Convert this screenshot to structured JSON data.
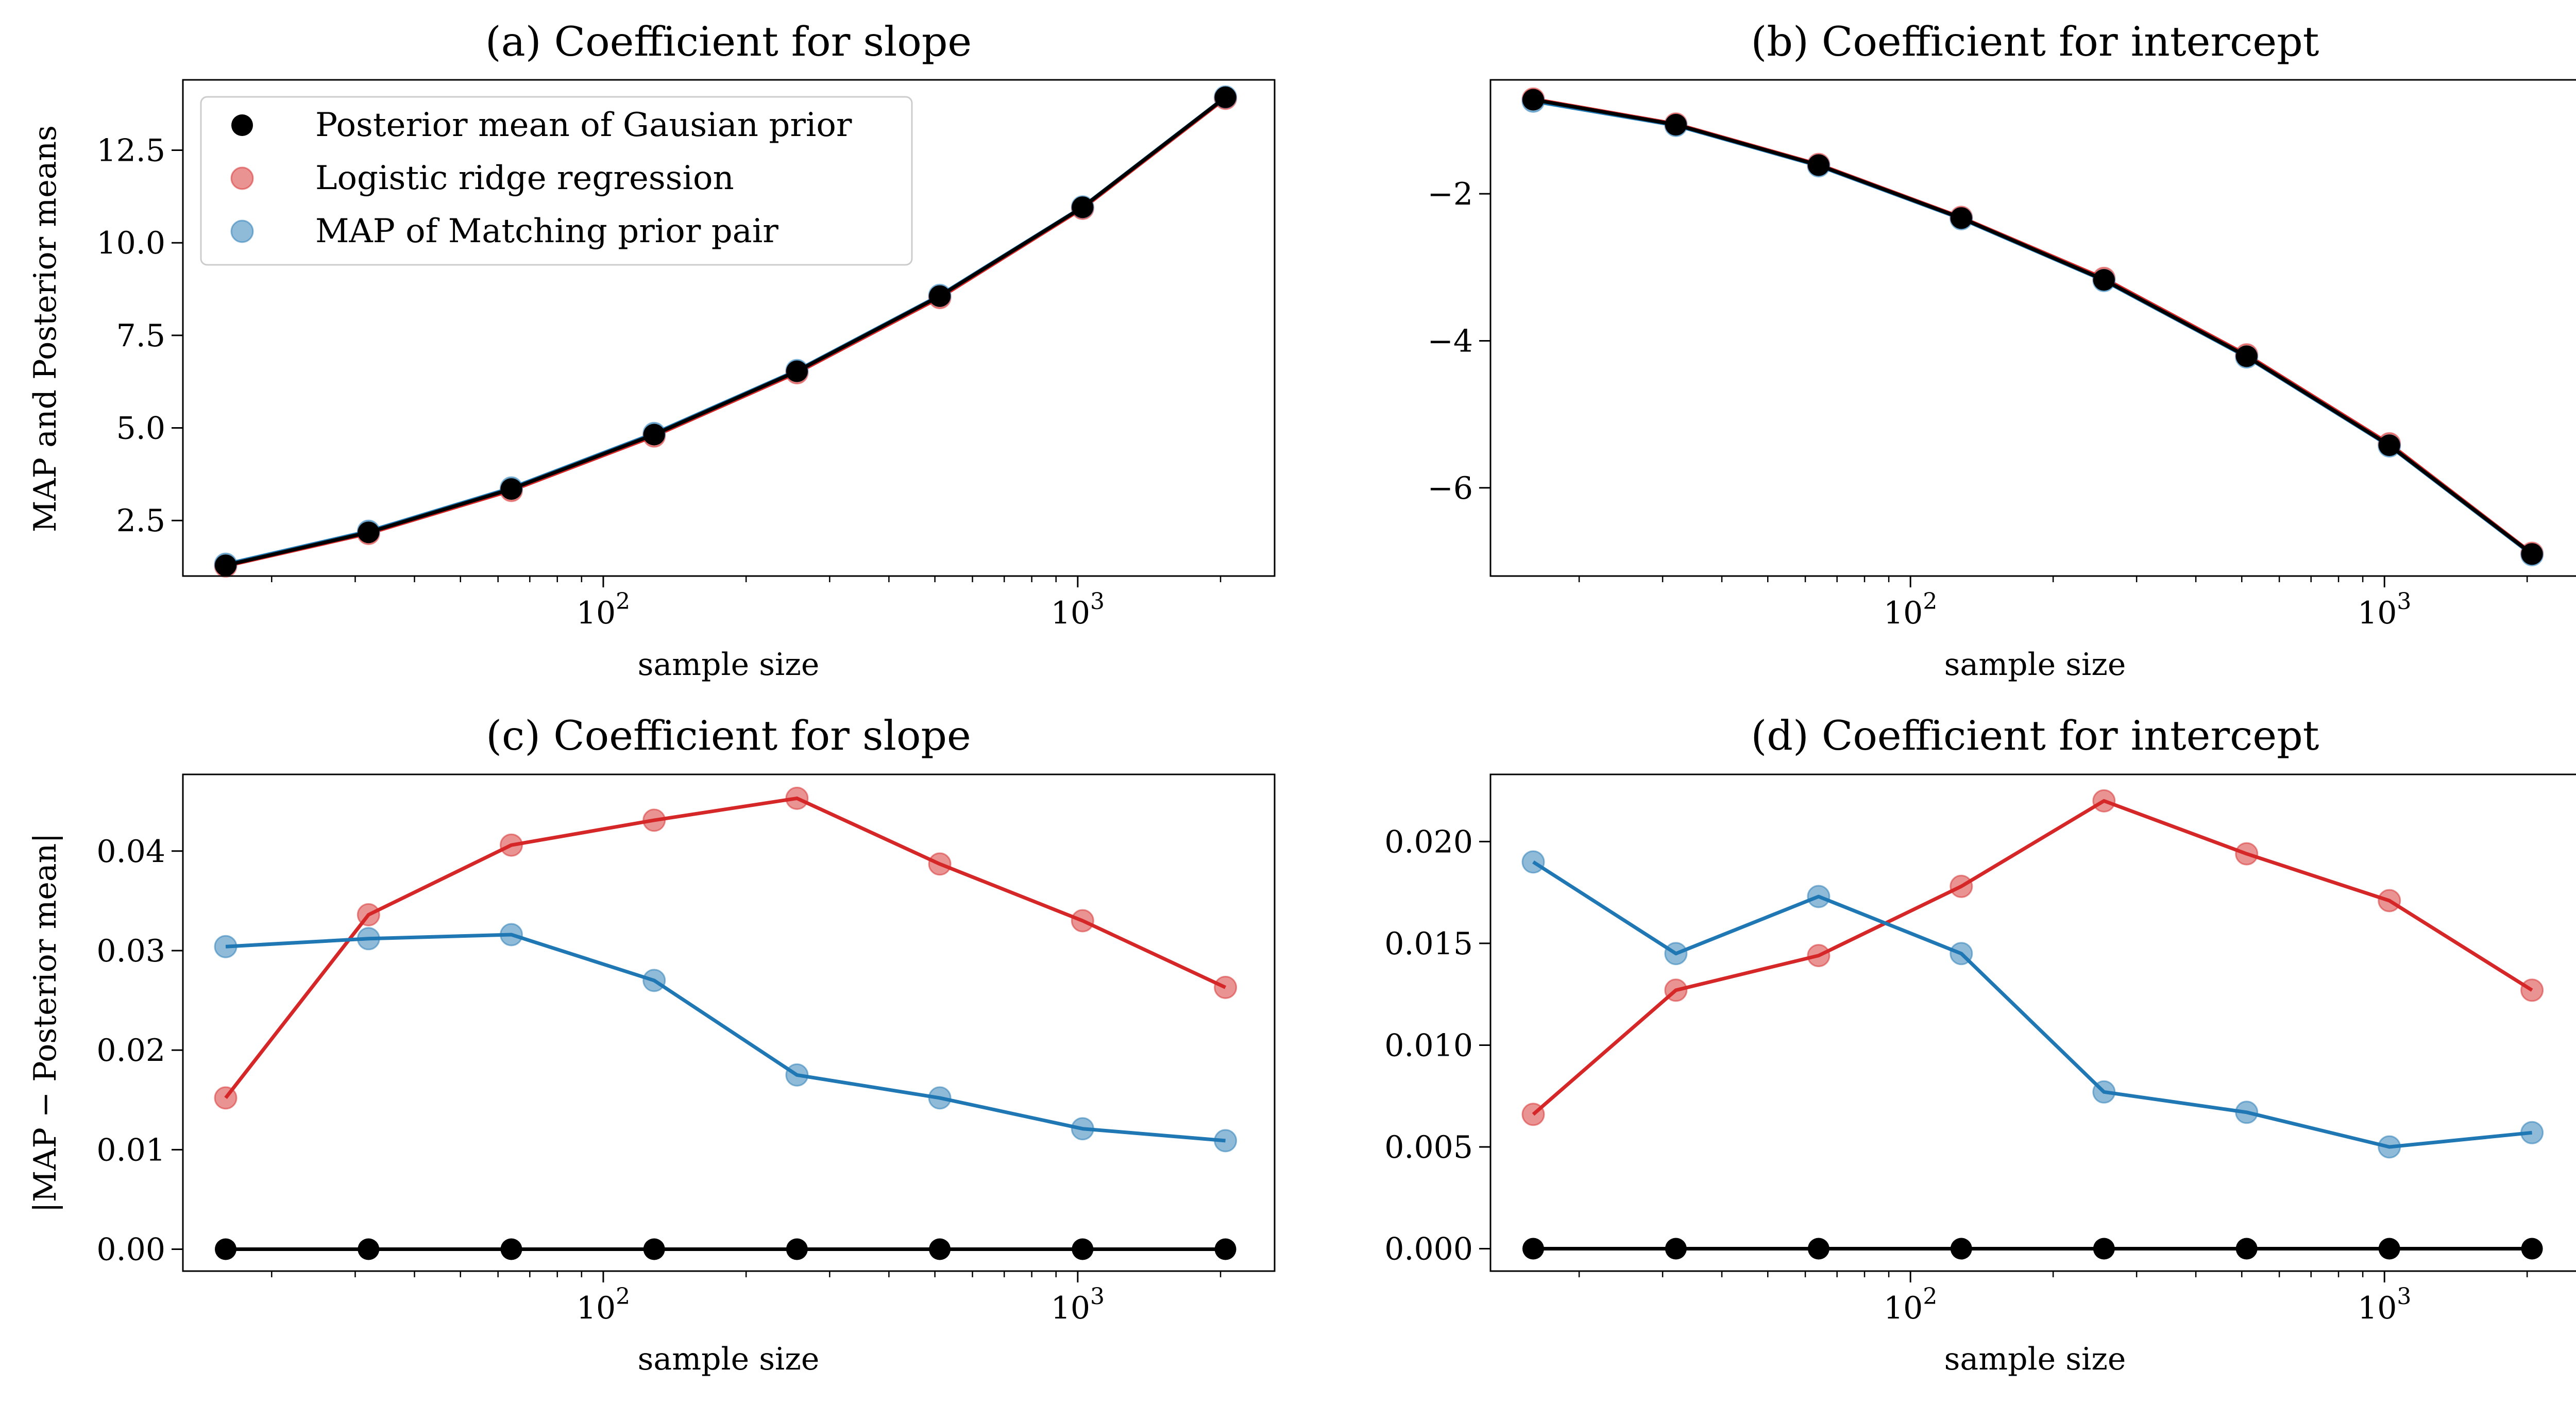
{
  "legend": {
    "items": [
      {
        "label": "Posterior mean of Gausian prior",
        "color": "#000000"
      },
      {
        "label": "Logistic ridge regression",
        "color": "#d62728"
      },
      {
        "label": "MAP of Matching prior pair",
        "color": "#1f77b4"
      }
    ]
  },
  "chart_data": [
    {
      "type": "line",
      "title": "(a) Coefficient for slope",
      "xlabel": "sample size",
      "ylabel": "MAP and Posterior means",
      "xscale": "log",
      "xlim": [
        13,
        2600
      ],
      "ylim": [
        1.0,
        14.4
      ],
      "yticks": [
        2.5,
        5.0,
        7.5,
        10.0,
        12.5
      ],
      "ytick_labels": [
        "2.5",
        "5.0",
        "7.5",
        "10.0",
        "12.5"
      ],
      "xticks": [
        100,
        1000
      ],
      "xtick_labels": [
        {
          "base": "10",
          "exp": "2"
        },
        {
          "base": "10",
          "exp": "3"
        }
      ],
      "legend_position": "upper-left",
      "x": [
        16,
        32,
        64,
        128,
        256,
        512,
        1024,
        2048
      ],
      "series": [
        {
          "name": "Posterior mean of Gausian prior",
          "color": "#000000",
          "values": [
            1.29,
            2.18,
            3.35,
            4.82,
            6.53,
            8.56,
            10.96,
            13.93
          ]
        },
        {
          "name": "Logistic ridge regression",
          "color": "#d62728",
          "values": [
            1.27,
            2.15,
            3.31,
            4.78,
            6.49,
            8.52,
            10.93,
            13.9
          ]
        },
        {
          "name": "MAP of Matching prior pair",
          "color": "#1f77b4",
          "values": [
            1.32,
            2.21,
            3.38,
            4.85,
            6.55,
            8.58,
            10.97,
            13.94
          ]
        }
      ]
    },
    {
      "type": "line",
      "title": "(b) Coefficient for intercept",
      "xlabel": "sample size",
      "ylabel": "",
      "xscale": "log",
      "xlim": [
        13,
        2600
      ],
      "ylim": [
        -7.2,
        -0.45
      ],
      "yticks": [
        -6,
        -4,
        -2
      ],
      "ytick_labels": [
        "−6",
        "−4",
        "−2"
      ],
      "xticks": [
        100,
        1000
      ],
      "xtick_labels": [
        {
          "base": "10",
          "exp": "2"
        },
        {
          "base": "10",
          "exp": "3"
        }
      ],
      "x": [
        16,
        32,
        64,
        128,
        256,
        512,
        1024,
        2048
      ],
      "series": [
        {
          "name": "Posterior mean of Gausian prior",
          "color": "#000000",
          "values": [
            -0.72,
            -1.06,
            -1.61,
            -2.33,
            -3.17,
            -4.21,
            -5.42,
            -6.9
          ]
        },
        {
          "name": "Logistic ridge regression",
          "color": "#d62728",
          "values": [
            -0.71,
            -1.05,
            -1.6,
            -2.32,
            -3.15,
            -4.19,
            -5.4,
            -6.89
          ]
        },
        {
          "name": "MAP of Matching prior pair",
          "color": "#1f77b4",
          "values": [
            -0.74,
            -1.07,
            -1.62,
            -2.34,
            -3.18,
            -4.22,
            -5.43,
            -6.91
          ]
        }
      ]
    },
    {
      "type": "line",
      "title": "(c) Coefficient for slope",
      "xlabel": "sample size",
      "ylabel": "|MAP − Posterior mean|",
      "xscale": "log",
      "xlim": [
        13,
        2600
      ],
      "ylim": [
        -0.0022,
        0.0477
      ],
      "yticks": [
        0.0,
        0.01,
        0.02,
        0.03,
        0.04
      ],
      "ytick_labels": [
        "0.00",
        "0.01",
        "0.02",
        "0.03",
        "0.04"
      ],
      "xticks": [
        100,
        1000
      ],
      "xtick_labels": [
        {
          "base": "10",
          "exp": "2"
        },
        {
          "base": "10",
          "exp": "3"
        }
      ],
      "x": [
        16,
        32,
        64,
        128,
        256,
        512,
        1024,
        2048
      ],
      "series": [
        {
          "name": "Posterior mean of Gausian prior",
          "color": "#000000",
          "values": [
            0,
            0,
            0,
            0,
            0,
            0,
            0,
            0
          ]
        },
        {
          "name": "Logistic ridge regression",
          "color": "#d62728",
          "values": [
            0.0152,
            0.0336,
            0.0406,
            0.0431,
            0.0453,
            0.0387,
            0.033,
            0.0263
          ]
        },
        {
          "name": "MAP of Matching prior pair",
          "color": "#1f77b4",
          "values": [
            0.0304,
            0.0312,
            0.0316,
            0.027,
            0.0175,
            0.0152,
            0.0121,
            0.0109
          ]
        }
      ]
    },
    {
      "type": "line",
      "title": "(d) Coefficient for intercept",
      "xlabel": "sample size",
      "ylabel": "",
      "xscale": "log",
      "xlim": [
        13,
        2600
      ],
      "ylim": [
        -0.0011,
        0.0233
      ],
      "yticks": [
        0.0,
        0.005,
        0.01,
        0.015,
        0.02
      ],
      "ytick_labels": [
        "0.000",
        "0.005",
        "0.010",
        "0.015",
        "0.020"
      ],
      "xticks": [
        100,
        1000
      ],
      "xtick_labels": [
        {
          "base": "10",
          "exp": "2"
        },
        {
          "base": "10",
          "exp": "3"
        }
      ],
      "x": [
        16,
        32,
        64,
        128,
        256,
        512,
        1024,
        2048
      ],
      "series": [
        {
          "name": "Posterior mean of Gausian prior",
          "color": "#000000",
          "values": [
            0,
            0,
            0,
            0,
            0,
            0,
            0,
            0
          ]
        },
        {
          "name": "Logistic ridge regression",
          "color": "#d62728",
          "values": [
            0.0066,
            0.0127,
            0.0144,
            0.0178,
            0.022,
            0.0194,
            0.0171,
            0.0127
          ]
        },
        {
          "name": "MAP of Matching prior pair",
          "color": "#1f77b4",
          "values": [
            0.019,
            0.0145,
            0.0173,
            0.0145,
            0.0077,
            0.0067,
            0.005,
            0.0057
          ]
        }
      ]
    }
  ]
}
